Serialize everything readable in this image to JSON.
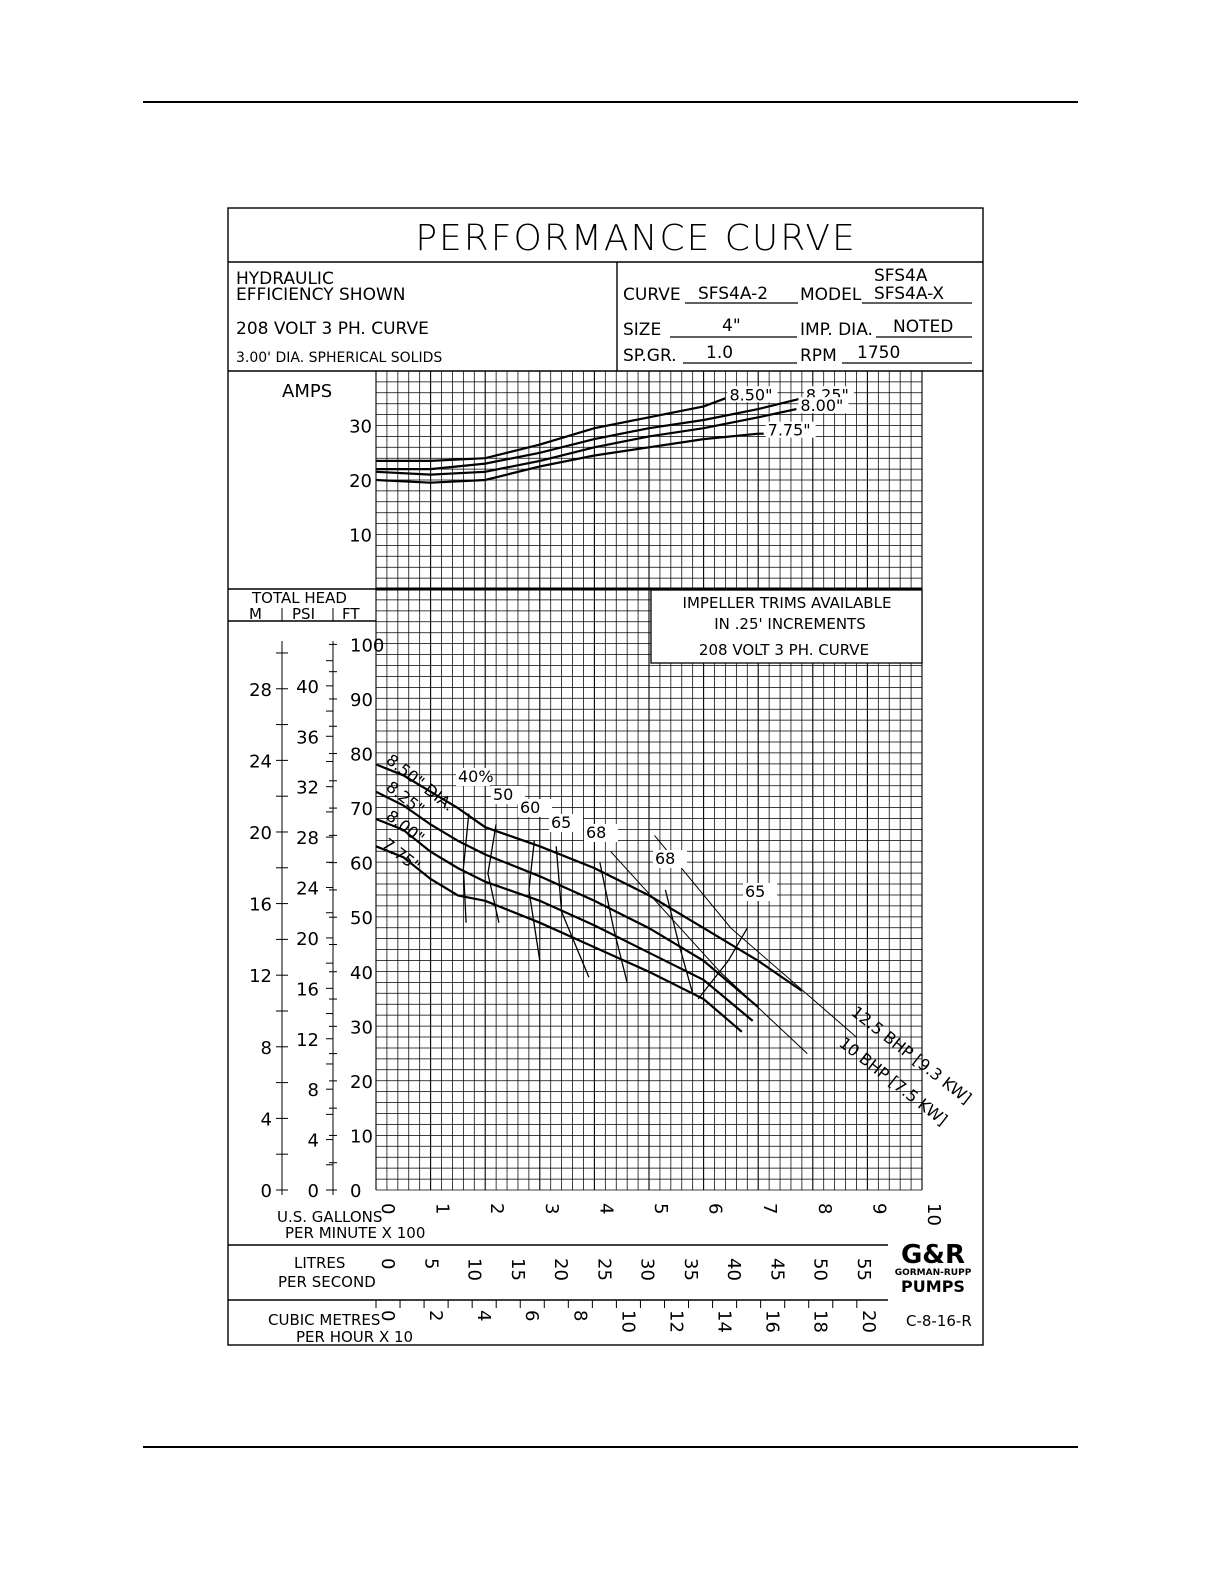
{
  "header": {
    "title": "PERFORMANCE CURVE",
    "left": {
      "line1": "HYDRAULIC",
      "line2": "EFFICIENCY  SHOWN",
      "line3": "208  VOLT  3  PH. CURVE",
      "line4": "3.00' DIA. SPHERICAL  SOLIDS"
    },
    "right": {
      "curve_label": "CURVE",
      "curve_value": "SFS4A-2",
      "model_label": "MODEL",
      "model_value_top": "SFS4A",
      "model_value": "SFS4A-X",
      "size_label": "SIZE",
      "size_value": "4\"",
      "imp_label": "IMP. DIA.",
      "imp_value": "NOTED",
      "spgr_label": "SP.GR.",
      "spgr_value": "1.0",
      "rpm_label": "RPM",
      "rpm_value": "1750"
    }
  },
  "amps_panel": {
    "ylabel": "AMPS",
    "ticks": [
      "30",
      "20",
      "10"
    ]
  },
  "head_panel": {
    "title": "TOTAL  HEAD",
    "col_m": "M",
    "col_psi": "PSI",
    "col_ft": "FT",
    "ft_ticks": [
      "100",
      "90",
      "80",
      "70",
      "60",
      "50",
      "40",
      "30",
      "20",
      "10",
      "0"
    ],
    "m_ticks": [
      "28",
      "24",
      "20",
      "16",
      "12",
      "8",
      "4",
      "0"
    ],
    "psi_ticks": [
      "40",
      "36",
      "32",
      "28",
      "24",
      "20",
      "16",
      "12",
      "8",
      "4",
      "0"
    ],
    "note_line1": "IMPELLER  TRIMS  AVAILABLE",
    "note_line2": "IN  .25' INCREMENTS",
    "note_line3": "208  VOLT  3  PH. CURVE"
  },
  "x_axes": {
    "gpm_label1": "U.S. GALLONS",
    "gpm_label2": "PER  MINUTE  X  100",
    "gpm_ticks": [
      "0",
      "1",
      "2",
      "3",
      "4",
      "5",
      "6",
      "7",
      "8",
      "9",
      "10"
    ],
    "lps_label1": "LITRES",
    "lps_label2": "PER  SECOND",
    "lps_ticks": [
      "0",
      "5",
      "10",
      "15",
      "20",
      "25",
      "30",
      "35",
      "40",
      "45",
      "50",
      "55"
    ],
    "cmh_label1": "CUBIC  METRES",
    "cmh_label2": "PER  HOUR  X  10",
    "cmh_ticks": [
      "0",
      "2",
      "4",
      "6",
      "8",
      "10",
      "12",
      "14",
      "16",
      "18",
      "20"
    ]
  },
  "logo": {
    "mark": "G&R",
    "line1": "GORMAN-RUPP",
    "line2": "PUMPS"
  },
  "drawing_no": "C-8-16-R",
  "chart_data": [
    {
      "type": "line",
      "title": "",
      "xlabel": "U.S. GALLONS PER MINUTE X 100",
      "ylabel": "AMPS",
      "xlim": [
        0,
        10
      ],
      "ylim": [
        0,
        38
      ],
      "grid": true,
      "series": [
        {
          "name": "8.50\"",
          "x": [
            0,
            1,
            2,
            3,
            4,
            5,
            6,
            6.4
          ],
          "y": [
            23.5,
            23.5,
            24,
            26.5,
            29.5,
            31.5,
            33.5,
            35
          ]
        },
        {
          "name": "8.25\"",
          "x": [
            0,
            1,
            2,
            3,
            4,
            5,
            6,
            7,
            7.8
          ],
          "y": [
            22,
            22,
            23,
            25,
            27.5,
            29.5,
            31,
            33,
            35
          ]
        },
        {
          "name": "8.00\"",
          "x": [
            0,
            1,
            2,
            3,
            4,
            5,
            6,
            7,
            7.7
          ],
          "y": [
            21.5,
            21,
            21.5,
            23.5,
            26,
            28,
            29.5,
            31.5,
            33
          ]
        },
        {
          "name": "7.75\"",
          "x": [
            0,
            1,
            2,
            3,
            4,
            5,
            6,
            7,
            7.1
          ],
          "y": [
            20,
            19.5,
            20,
            22.5,
            24.5,
            26,
            27.5,
            28.5,
            28.5
          ]
        }
      ]
    },
    {
      "type": "line",
      "title": "",
      "xlabel": "U.S. GALLONS PER MINUTE X 100",
      "ylabel": "TOTAL HEAD FT",
      "xlim": [
        0,
        10
      ],
      "ylim": [
        0,
        100
      ],
      "grid": true,
      "series": [
        {
          "name": "8.50\" DIA.",
          "x": [
            0,
            0.5,
            1,
            1.5,
            2,
            3,
            4,
            5,
            6,
            7,
            7.8
          ],
          "y": [
            78,
            76,
            73,
            70,
            66.5,
            63,
            59,
            54,
            48,
            42,
            36.5
          ]
        },
        {
          "name": "8.25\"",
          "x": [
            0,
            0.5,
            1,
            1.5,
            2,
            3,
            4,
            5,
            6,
            7
          ],
          "y": [
            73,
            70.5,
            67,
            64,
            61.5,
            57.5,
            53,
            48,
            42,
            33.5
          ]
        },
        {
          "name": "8.00\"",
          "x": [
            0,
            0.5,
            1,
            1.5,
            2,
            3,
            4,
            5,
            6,
            6.9
          ],
          "y": [
            68,
            66,
            62,
            59,
            56.5,
            53,
            48.5,
            43.5,
            38.5,
            31
          ]
        },
        {
          "name": "7.75\"",
          "x": [
            0,
            0.5,
            1,
            1.5,
            2,
            3,
            4,
            5,
            6,
            6.7
          ],
          "y": [
            63,
            61,
            57,
            54,
            53,
            49,
            44.5,
            40,
            35,
            29
          ]
        },
        {
          "name": "40%",
          "x": [
            1.7,
            1.6,
            1.65
          ],
          "y": [
            69,
            59,
            49
          ]
        },
        {
          "name": "50",
          "x": [
            2.2,
            2.05,
            2.25
          ],
          "y": [
            67,
            58,
            49
          ]
        },
        {
          "name": "60",
          "x": [
            2.9,
            2.8,
            3.0
          ],
          "y": [
            64,
            55,
            42
          ]
        },
        {
          "name": "65",
          "x": [
            3.3,
            3.4,
            3.9
          ],
          "y": [
            63,
            51,
            39
          ]
        },
        {
          "name": "68",
          "x": [
            4.1,
            4.35,
            4.6
          ],
          "y": [
            60,
            48,
            38
          ]
        },
        {
          "name": "68",
          "x": [
            5.3,
            5.55,
            5.8
          ],
          "y": [
            55,
            45,
            36
          ]
        },
        {
          "name": "65",
          "x": [
            6.8,
            6.45,
            5.9
          ],
          "y": [
            48,
            42,
            35
          ]
        },
        {
          "name": "12.5 BHP [9.3 KW]",
          "x": [
            5.1,
            6.5,
            8.8
          ],
          "y": [
            65,
            48,
            28
          ]
        },
        {
          "name": "10 BHP [7.5 KW]",
          "x": [
            4.3,
            6.3,
            7.9
          ],
          "y": [
            62,
            40,
            25
          ]
        }
      ]
    }
  ]
}
